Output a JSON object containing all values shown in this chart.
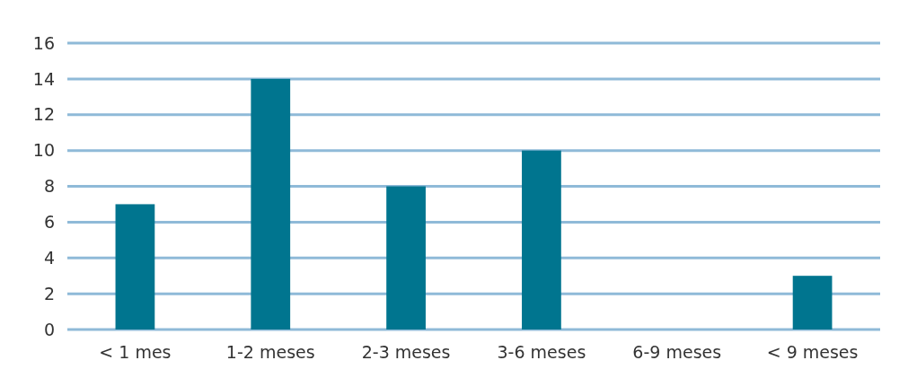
{
  "chart_data": {
    "type": "bar",
    "categories": [
      "< 1 mes",
      "1-2 meses",
      "2-3 meses",
      "3-6 meses",
      "6-9 meses",
      "< 9 meses"
    ],
    "values": [
      7,
      14,
      8,
      10,
      0,
      3
    ],
    "color": "#00758f",
    "ylim": [
      0,
      16
    ],
    "yticks": [
      0,
      2,
      4,
      6,
      8,
      10,
      12,
      14,
      16
    ],
    "grid": "y"
  }
}
